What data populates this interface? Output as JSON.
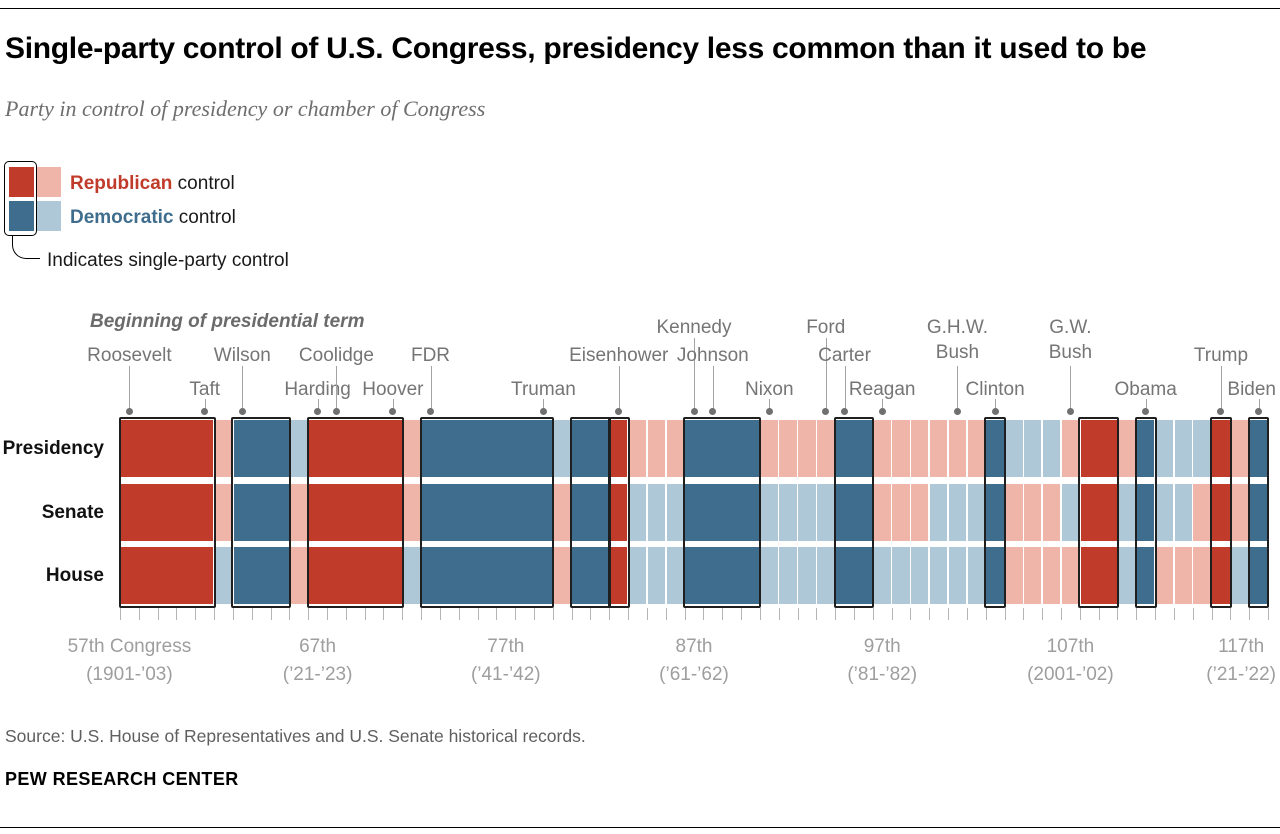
{
  "page": {
    "title": "Single-party control of U.S. Congress, presidency less common than it used to be",
    "subtitle": "Party in control of presidency or chamber of Congress",
    "source": "Source: U.S. House of Representatives and U.S. Senate historical records.",
    "footer": "PEW RESEARCH CENTER"
  },
  "legend": {
    "republican_name": "Republican",
    "republican_rest": " control",
    "democratic_name": "Democratic",
    "democratic_rest": " control",
    "single_party_note": "Indicates single-party control"
  },
  "annotations": {
    "heading": "Beginning of presidential term"
  },
  "colors": {
    "republican_dark": "#c13b2a",
    "republican_light": "#f0b5a9",
    "democratic_dark": "#3f6d8d",
    "democratic_light": "#aec8d8",
    "outline": "#1f1f1f"
  },
  "chart_data": {
    "type": "heatmap",
    "title": "Single-party control of U.S. Congress, presidency less common than it used to be",
    "subtitle": "Party in control of presidency or chamber of Congress",
    "rows": [
      "Presidency",
      "Senate",
      "House"
    ],
    "first_congress": 57,
    "last_congress": 117,
    "legend": [
      "Republican control",
      "Democratic control",
      "Indicates single-party control"
    ],
    "control": [
      {
        "c": 57,
        "p": "R",
        "s": "R",
        "h": "R",
        "u": true
      },
      {
        "c": 58,
        "p": "R",
        "s": "R",
        "h": "R",
        "u": true
      },
      {
        "c": 59,
        "p": "R",
        "s": "R",
        "h": "R",
        "u": true
      },
      {
        "c": 60,
        "p": "R",
        "s": "R",
        "h": "R",
        "u": true
      },
      {
        "c": 61,
        "p": "R",
        "s": "R",
        "h": "R",
        "u": true
      },
      {
        "c": 62,
        "p": "R",
        "s": "R",
        "h": "D",
        "u": false
      },
      {
        "c": 63,
        "p": "D",
        "s": "D",
        "h": "D",
        "u": true
      },
      {
        "c": 64,
        "p": "D",
        "s": "D",
        "h": "D",
        "u": true
      },
      {
        "c": 65,
        "p": "D",
        "s": "D",
        "h": "D",
        "u": true
      },
      {
        "c": 66,
        "p": "D",
        "s": "R",
        "h": "R",
        "u": false
      },
      {
        "c": 67,
        "p": "R",
        "s": "R",
        "h": "R",
        "u": true
      },
      {
        "c": 68,
        "p": "R",
        "s": "R",
        "h": "R",
        "u": true
      },
      {
        "c": 69,
        "p": "R",
        "s": "R",
        "h": "R",
        "u": true
      },
      {
        "c": 70,
        "p": "R",
        "s": "R",
        "h": "R",
        "u": true
      },
      {
        "c": 71,
        "p": "R",
        "s": "R",
        "h": "R",
        "u": true
      },
      {
        "c": 72,
        "p": "R",
        "s": "R",
        "h": "D",
        "u": false
      },
      {
        "c": 73,
        "p": "D",
        "s": "D",
        "h": "D",
        "u": true
      },
      {
        "c": 74,
        "p": "D",
        "s": "D",
        "h": "D",
        "u": true
      },
      {
        "c": 75,
        "p": "D",
        "s": "D",
        "h": "D",
        "u": true
      },
      {
        "c": 76,
        "p": "D",
        "s": "D",
        "h": "D",
        "u": true
      },
      {
        "c": 77,
        "p": "D",
        "s": "D",
        "h": "D",
        "u": true
      },
      {
        "c": 78,
        "p": "D",
        "s": "D",
        "h": "D",
        "u": true
      },
      {
        "c": 79,
        "p": "D",
        "s": "D",
        "h": "D",
        "u": true
      },
      {
        "c": 80,
        "p": "D",
        "s": "R",
        "h": "R",
        "u": false
      },
      {
        "c": 81,
        "p": "D",
        "s": "D",
        "h": "D",
        "u": true
      },
      {
        "c": 82,
        "p": "D",
        "s": "D",
        "h": "D",
        "u": true
      },
      {
        "c": 83,
        "p": "R",
        "s": "R",
        "h": "R",
        "u": true
      },
      {
        "c": 84,
        "p": "R",
        "s": "D",
        "h": "D",
        "u": false
      },
      {
        "c": 85,
        "p": "R",
        "s": "D",
        "h": "D",
        "u": false
      },
      {
        "c": 86,
        "p": "R",
        "s": "D",
        "h": "D",
        "u": false
      },
      {
        "c": 87,
        "p": "D",
        "s": "D",
        "h": "D",
        "u": true
      },
      {
        "c": 88,
        "p": "D",
        "s": "D",
        "h": "D",
        "u": true
      },
      {
        "c": 89,
        "p": "D",
        "s": "D",
        "h": "D",
        "u": true
      },
      {
        "c": 90,
        "p": "D",
        "s": "D",
        "h": "D",
        "u": true
      },
      {
        "c": 91,
        "p": "R",
        "s": "D",
        "h": "D",
        "u": false
      },
      {
        "c": 92,
        "p": "R",
        "s": "D",
        "h": "D",
        "u": false
      },
      {
        "c": 93,
        "p": "R",
        "s": "D",
        "h": "D",
        "u": false
      },
      {
        "c": 94,
        "p": "R",
        "s": "D",
        "h": "D",
        "u": false
      },
      {
        "c": 95,
        "p": "D",
        "s": "D",
        "h": "D",
        "u": true
      },
      {
        "c": 96,
        "p": "D",
        "s": "D",
        "h": "D",
        "u": true
      },
      {
        "c": 97,
        "p": "R",
        "s": "R",
        "h": "D",
        "u": false
      },
      {
        "c": 98,
        "p": "R",
        "s": "R",
        "h": "D",
        "u": false
      },
      {
        "c": 99,
        "p": "R",
        "s": "R",
        "h": "D",
        "u": false
      },
      {
        "c": 100,
        "p": "R",
        "s": "D",
        "h": "D",
        "u": false
      },
      {
        "c": 101,
        "p": "R",
        "s": "D",
        "h": "D",
        "u": false
      },
      {
        "c": 102,
        "p": "R",
        "s": "D",
        "h": "D",
        "u": false
      },
      {
        "c": 103,
        "p": "D",
        "s": "D",
        "h": "D",
        "u": true
      },
      {
        "c": 104,
        "p": "D",
        "s": "R",
        "h": "R",
        "u": false
      },
      {
        "c": 105,
        "p": "D",
        "s": "R",
        "h": "R",
        "u": false
      },
      {
        "c": 106,
        "p": "D",
        "s": "R",
        "h": "R",
        "u": false
      },
      {
        "c": 107,
        "p": "R",
        "s": "D",
        "h": "R",
        "u": false
      },
      {
        "c": 108,
        "p": "R",
        "s": "R",
        "h": "R",
        "u": true
      },
      {
        "c": 109,
        "p": "R",
        "s": "R",
        "h": "R",
        "u": true
      },
      {
        "c": 110,
        "p": "R",
        "s": "D",
        "h": "D",
        "u": false
      },
      {
        "c": 111,
        "p": "D",
        "s": "D",
        "h": "D",
        "u": true
      },
      {
        "c": 112,
        "p": "D",
        "s": "D",
        "h": "R",
        "u": false
      },
      {
        "c": 113,
        "p": "D",
        "s": "D",
        "h": "R",
        "u": false
      },
      {
        "c": 114,
        "p": "D",
        "s": "R",
        "h": "R",
        "u": false
      },
      {
        "c": 115,
        "p": "R",
        "s": "R",
        "h": "R",
        "u": true
      },
      {
        "c": 116,
        "p": "R",
        "s": "R",
        "h": "D",
        "u": false
      },
      {
        "c": 117,
        "p": "D",
        "s": "D",
        "h": "D",
        "u": true
      }
    ],
    "presidents": [
      {
        "name_lines": [
          "Roosevelt"
        ],
        "congress": 57,
        "level": "mid"
      },
      {
        "name_lines": [
          "Taft"
        ],
        "congress": 61,
        "level": "low"
      },
      {
        "name_lines": [
          "Wilson"
        ],
        "congress": 63,
        "level": "mid"
      },
      {
        "name_lines": [
          "Harding"
        ],
        "congress": 67,
        "level": "low"
      },
      {
        "name_lines": [
          "Coolidge"
        ],
        "congress": 68,
        "level": "mid"
      },
      {
        "name_lines": [
          "Hoover"
        ],
        "congress": 71,
        "level": "low"
      },
      {
        "name_lines": [
          "FDR"
        ],
        "congress": 73,
        "level": "mid"
      },
      {
        "name_lines": [
          "Truman"
        ],
        "congress": 79,
        "level": "low"
      },
      {
        "name_lines": [
          "Eisenhower"
        ],
        "congress": 83,
        "level": "mid"
      },
      {
        "name_lines": [
          "Kennedy"
        ],
        "congress": 87,
        "level": "top"
      },
      {
        "name_lines": [
          "Johnson"
        ],
        "congress": 88,
        "level": "mid"
      },
      {
        "name_lines": [
          "Nixon"
        ],
        "congress": 91,
        "level": "low"
      },
      {
        "name_lines": [
          "Ford"
        ],
        "congress": 94,
        "level": "top"
      },
      {
        "name_lines": [
          "Carter"
        ],
        "congress": 95,
        "level": "mid"
      },
      {
        "name_lines": [
          "Reagan"
        ],
        "congress": 97,
        "level": "low"
      },
      {
        "name_lines": [
          "G.H.W.",
          "Bush"
        ],
        "congress": 101,
        "level": "top"
      },
      {
        "name_lines": [
          "Clinton"
        ],
        "congress": 103,
        "level": "low"
      },
      {
        "name_lines": [
          "G.W.",
          "Bush"
        ],
        "congress": 107,
        "level": "top"
      },
      {
        "name_lines": [
          "Obama"
        ],
        "congress": 111,
        "level": "low"
      },
      {
        "name_lines": [
          "Trump"
        ],
        "congress": 115,
        "level": "mid"
      },
      {
        "name_lines": [
          "Biden"
        ],
        "congress": 117,
        "level": "low"
      }
    ],
    "x_axis": [
      {
        "congress": 57,
        "line1": "57th Congress",
        "line2": "(1901-’03)"
      },
      {
        "congress": 67,
        "line1": "67th",
        "line2": "(’21-’23)"
      },
      {
        "congress": 77,
        "line1": "77th",
        "line2": "(’41-’42)"
      },
      {
        "congress": 87,
        "line1": "87th",
        "line2": "(’61-’62)"
      },
      {
        "congress": 97,
        "line1": "97th",
        "line2": "(’81-’82)"
      },
      {
        "congress": 107,
        "line1": "107th",
        "line2": "(2001-’02)"
      },
      {
        "congress": 117,
        "line1": "117th",
        "line2": "(’21-’22)"
      }
    ]
  }
}
